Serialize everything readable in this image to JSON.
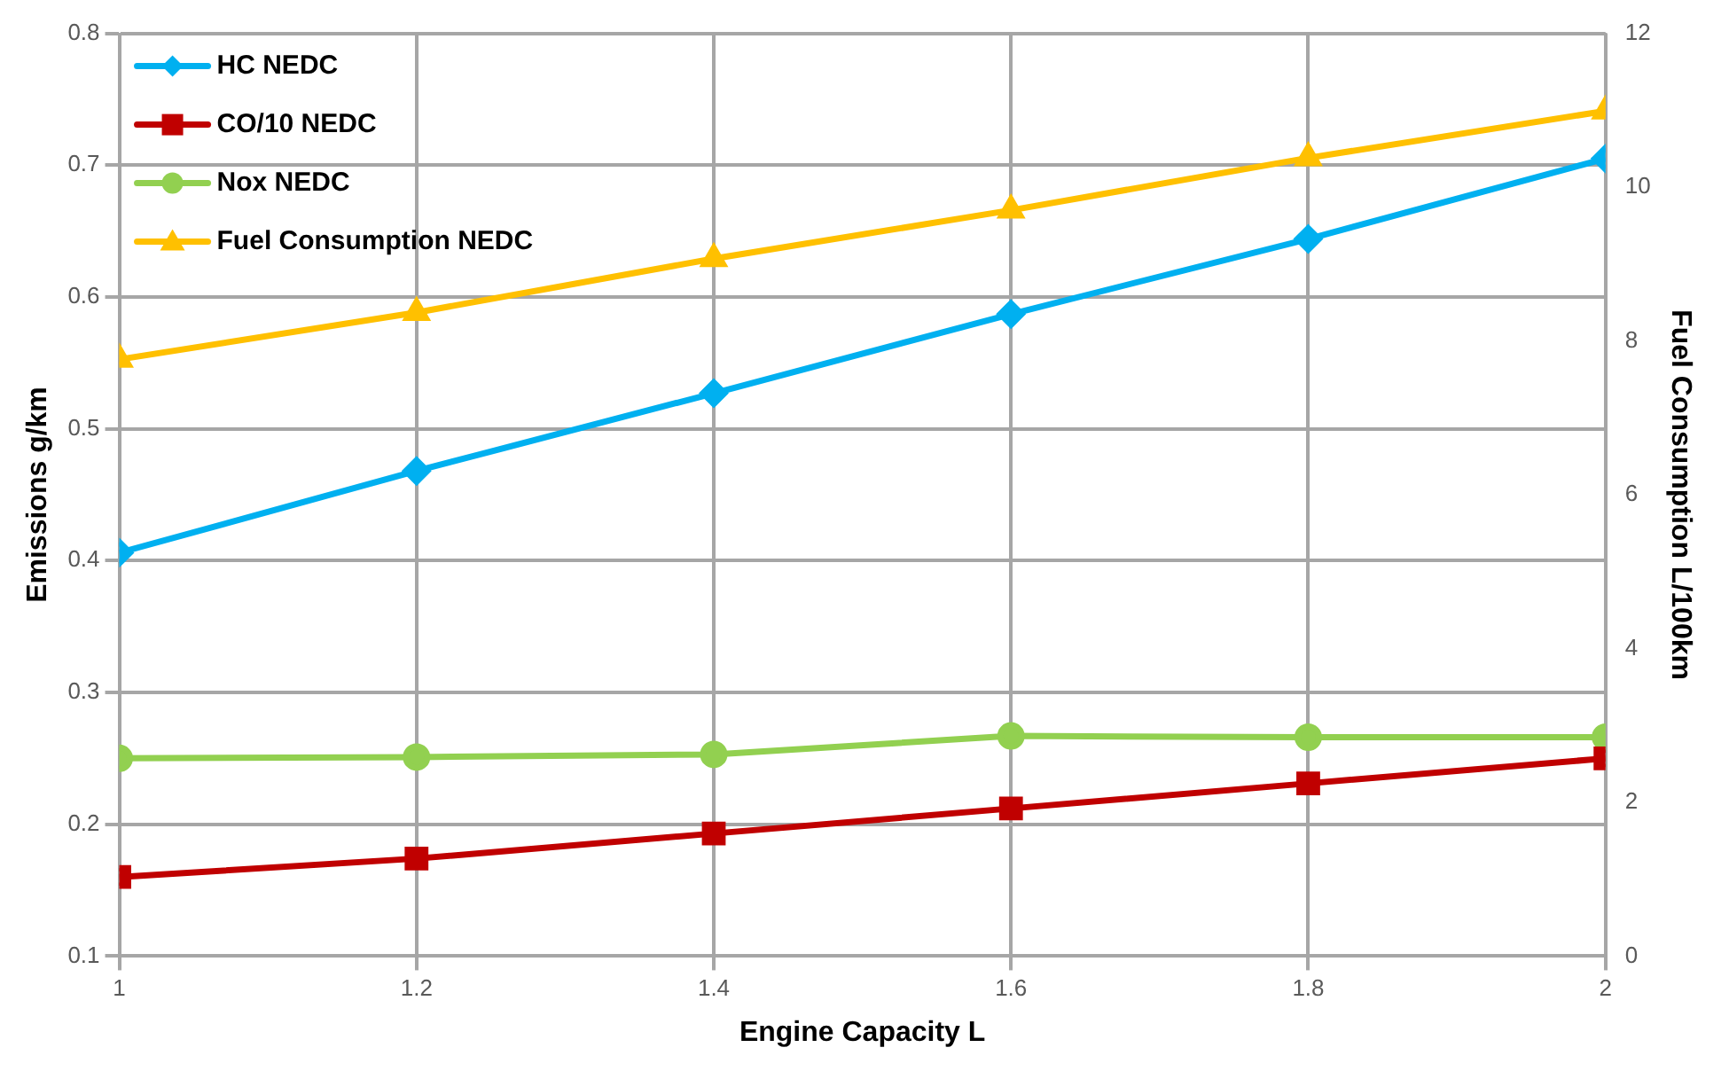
{
  "chart_data": {
    "type": "line",
    "xlabel": "Engine Capacity L",
    "ylabel": "Emissions g/km",
    "y2label": "Fuel Consumption L/100km",
    "x": [
      1,
      1.2,
      1.4,
      1.6,
      1.8,
      2
    ],
    "xlim": [
      1,
      2
    ],
    "xticks": [
      1,
      1.2,
      1.4,
      1.6,
      1.8,
      2
    ],
    "ylim": [
      0.1,
      0.8
    ],
    "yticks": [
      0.1,
      0.2,
      0.3,
      0.4,
      0.5,
      0.6,
      0.7,
      0.8
    ],
    "y2lim": [
      0,
      12
    ],
    "y2ticks": [
      0,
      2,
      4,
      6,
      8,
      10,
      12
    ],
    "grid": true,
    "legend": "top left",
    "line_style": "solid",
    "series": [
      {
        "name": "HC NEDC",
        "color": "#00b0f0",
        "marker": "diamond",
        "values": [
          0.406,
          0.468,
          0.527,
          0.587,
          0.644,
          0.705
        ]
      },
      {
        "name": "CO/10 NEDC",
        "color": "#c00000",
        "marker": "square",
        "values": [
          0.16,
          0.174,
          0.193,
          0.212,
          0.231,
          0.25
        ]
      },
      {
        "name": "Nox NEDC",
        "color": "#92d050",
        "marker": "circle",
        "values": [
          0.25,
          0.251,
          0.253,
          0.267,
          0.266,
          0.266
        ]
      },
      {
        "name": "Fuel Consumption NEDC",
        "color": "#ffc000",
        "marker": "triangle",
        "axis": "y2",
        "values": [
          7.76,
          8.37,
          9.07,
          9.7,
          10.38,
          10.99
        ]
      }
    ]
  }
}
